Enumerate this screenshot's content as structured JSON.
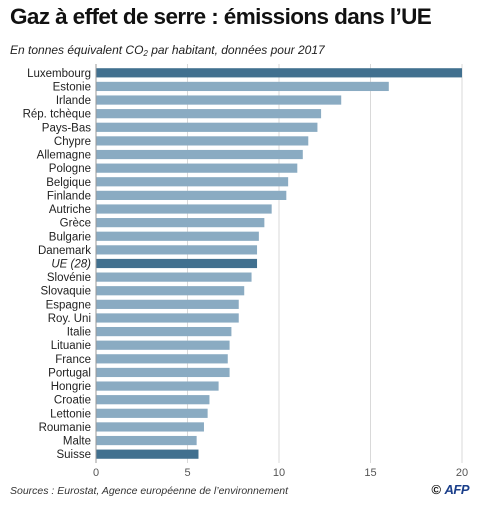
{
  "title": "Gaz à effet de serre : émissions dans l’UE",
  "subtitle_pre": "En tonnes équivalent CO",
  "subtitle_sub": "2",
  "subtitle_post": " par habitant, données pour 2017",
  "source": "Sources : Eurostat, Agence européenne de l’environnement",
  "credit_symbol": "©",
  "credit_name": "AFP",
  "colors": {
    "default": "#8aabc2",
    "highlight": "#41708f",
    "grid": "#d9d9d9",
    "axis": "#999999"
  },
  "chart_data": {
    "type": "bar",
    "orientation": "horizontal",
    "categories": [
      "Luxembourg",
      "Estonie",
      "Irlande",
      "Rép. tchèque",
      "Pays-Bas",
      "Chypre",
      "Allemagne",
      "Pologne",
      "Belgique",
      "Finlande",
      "Autriche",
      "Grèce",
      "Bulgarie",
      "Danemark",
      "UE (28)",
      "Slovénie",
      "Slovaquie",
      "Espagne",
      "Roy. Uni",
      "Italie",
      "Lituanie",
      "France",
      "Portugal",
      "Hongrie",
      "Croatie",
      "Lettonie",
      "Roumanie",
      "Malte",
      "Suisse"
    ],
    "values": [
      20.0,
      16.0,
      13.4,
      12.3,
      12.1,
      11.6,
      11.3,
      11.0,
      10.5,
      10.4,
      9.6,
      9.2,
      8.9,
      8.8,
      8.8,
      8.5,
      8.1,
      7.8,
      7.8,
      7.4,
      7.3,
      7.2,
      7.3,
      6.7,
      6.2,
      6.1,
      5.9,
      5.5,
      5.6
    ],
    "highlighted": [
      "Luxembourg",
      "UE (28)",
      "Suisse"
    ],
    "italic_categories": [
      "UE (28)"
    ],
    "xlim": [
      0,
      20
    ],
    "xticks": [
      0,
      5,
      10,
      15,
      20
    ],
    "grid": true
  }
}
